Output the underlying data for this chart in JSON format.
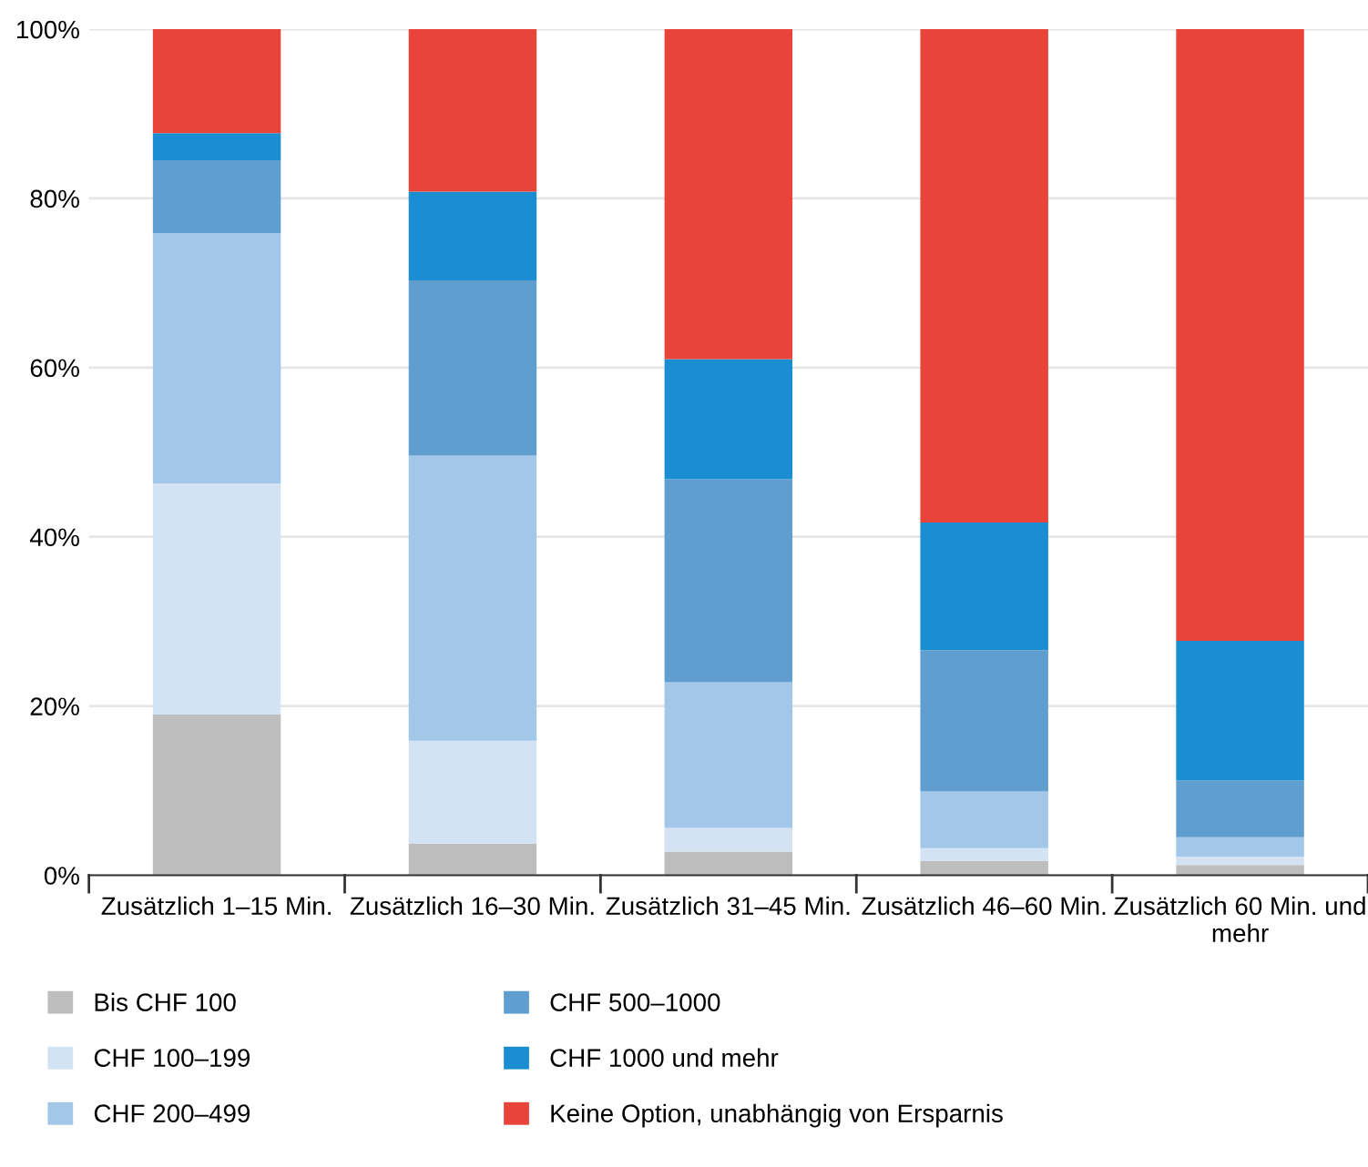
{
  "chart_data": {
    "type": "bar",
    "stacked": true,
    "categories": [
      "Zusätzlich 1–15 Min.",
      "Zusätzlich 16–30 Min.",
      "Zusätzlich 31–45 Min.",
      "Zusätzlich 46–60 Min.",
      "Zusätzlich 60 Min. und mehr"
    ],
    "series": [
      {
        "name": "Bis CHF 100",
        "color": "#bdbdbd",
        "values": [
          19.0,
          3.7,
          2.8,
          1.7,
          1.2
        ]
      },
      {
        "name": "CHF 100–199",
        "color": "#d3e3f3",
        "values": [
          27.3,
          12.2,
          2.8,
          1.5,
          1.0
        ]
      },
      {
        "name": "CHF 200–499",
        "color": "#a3c7e8",
        "values": [
          29.6,
          33.7,
          17.2,
          6.7,
          2.3
        ]
      },
      {
        "name": "CHF 500–1000",
        "color": "#5f9ecf",
        "values": [
          8.6,
          20.7,
          24.0,
          16.7,
          6.7
        ]
      },
      {
        "name": "CHF 1000 und mehr",
        "color": "#1a8ed0",
        "values": [
          3.2,
          10.5,
          14.2,
          15.1,
          16.5
        ]
      },
      {
        "name": "Keine Option, unabhängig von Ersparnis",
        "color": "#e8443a",
        "values": [
          12.3,
          19.2,
          39.0,
          58.3,
          72.3
        ]
      }
    ],
    "ylim": [
      0,
      100
    ],
    "yticks": [
      {
        "value": 0,
        "label": "0%"
      },
      {
        "value": 20,
        "label": "20%"
      },
      {
        "value": 40,
        "label": "40%"
      },
      {
        "value": 60,
        "label": "60%"
      },
      {
        "value": 80,
        "label": "80%"
      },
      {
        "value": 100,
        "label": "100%"
      }
    ],
    "grid": "y",
    "legend": "bottom"
  }
}
